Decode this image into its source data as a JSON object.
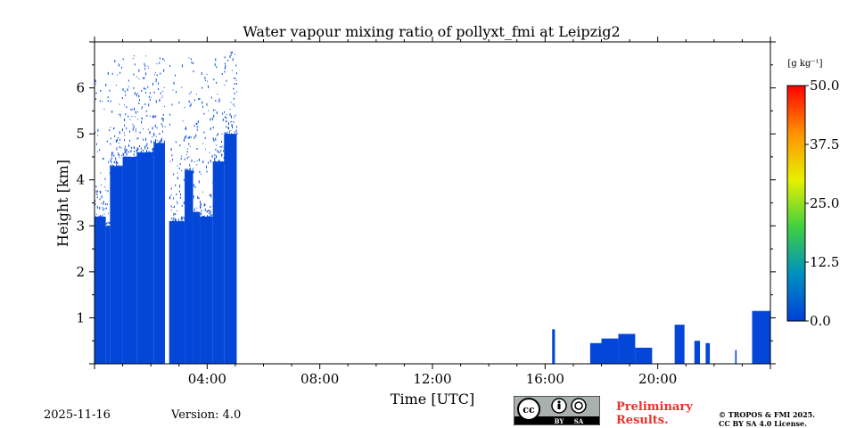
{
  "chart_data": {
    "type": "heatmap",
    "title": "Water vapour mixing ratio of pollyxt_fmi at Leipzig2",
    "xlabel": "Time [UTC]",
    "ylabel": "Height [km]",
    "xlim": [
      0,
      24
    ],
    "ylim": [
      0,
      7
    ],
    "x_ticks": [
      {
        "value": 4,
        "label": "04:00"
      },
      {
        "value": 8,
        "label": "08:00"
      },
      {
        "value": 12,
        "label": "12:00"
      },
      {
        "value": 16,
        "label": "16:00"
      },
      {
        "value": 20,
        "label": "20:00"
      }
    ],
    "y_ticks": [
      {
        "value": 1,
        "label": "1"
      },
      {
        "value": 2,
        "label": "2"
      },
      {
        "value": 3,
        "label": "3"
      },
      {
        "value": 4,
        "label": "4"
      },
      {
        "value": 5,
        "label": "5"
      },
      {
        "value": 6,
        "label": "6"
      }
    ],
    "colorbar": {
      "unit": "[g kg⁻¹]",
      "range": [
        0,
        50
      ],
      "tick_labels": [
        "50.0",
        "37.5",
        "25.0",
        "12.5",
        "0.0"
      ],
      "colors": [
        "#ff0000",
        "#ff8c00",
        "#ffff00",
        "#80ff00",
        "#00c0a0",
        "#0050ff",
        "#0040d8"
      ]
    },
    "data_color": "#0447d8",
    "segments": [
      {
        "x0": 0.0,
        "x1": 0.4,
        "top": 3.2
      },
      {
        "x0": 0.4,
        "x1": 0.55,
        "top": 3.0
      },
      {
        "x0": 0.55,
        "x1": 1.0,
        "top": 4.3
      },
      {
        "x0": 1.0,
        "x1": 1.5,
        "top": 4.5
      },
      {
        "x0": 1.5,
        "x1": 2.1,
        "top": 4.6
      },
      {
        "x0": 2.1,
        "x1": 2.5,
        "top": 4.8
      },
      {
        "x0": 2.65,
        "x1": 3.2,
        "top": 3.1
      },
      {
        "x0": 3.2,
        "x1": 3.5,
        "top": 4.2
      },
      {
        "x0": 3.5,
        "x1": 3.75,
        "top": 3.3
      },
      {
        "x0": 3.75,
        "x1": 4.2,
        "top": 3.2
      },
      {
        "x0": 4.2,
        "x1": 4.6,
        "top": 4.4
      },
      {
        "x0": 4.6,
        "x1": 5.05,
        "top": 5.0
      },
      {
        "x0": 16.25,
        "x1": 16.35,
        "top": 0.75
      },
      {
        "x0": 17.6,
        "x1": 18.0,
        "top": 0.45
      },
      {
        "x0": 18.0,
        "x1": 18.6,
        "top": 0.55
      },
      {
        "x0": 18.6,
        "x1": 19.2,
        "top": 0.65
      },
      {
        "x0": 19.2,
        "x1": 19.8,
        "top": 0.35
      },
      {
        "x0": 20.6,
        "x1": 20.95,
        "top": 0.85
      },
      {
        "x0": 21.3,
        "x1": 21.5,
        "top": 0.5
      },
      {
        "x0": 21.7,
        "x1": 21.85,
        "top": 0.45
      },
      {
        "x0": 22.75,
        "x1": 22.8,
        "top": 0.3
      },
      {
        "x0": 23.35,
        "x1": 24.0,
        "top": 1.15
      }
    ]
  },
  "footer": {
    "date": "2025-11-16",
    "version": "Version: 4.0",
    "preliminary_line1": "Preliminary",
    "preliminary_line2": "Results.",
    "copyright_line1": "© TROPOS & FMI 2025.",
    "copyright_line2": "CC BY SA 4.0 License.",
    "license_badge": {
      "cc": "cc",
      "by": "BY",
      "sa": "SA"
    }
  }
}
